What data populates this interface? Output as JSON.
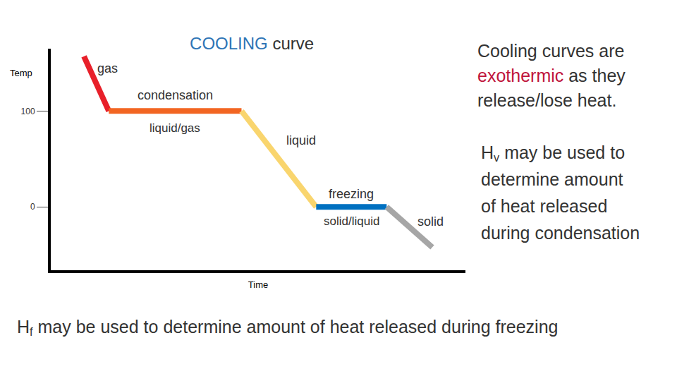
{
  "chart_data": {
    "type": "line",
    "title": [
      {
        "text": "COOLING",
        "color": "#2e75b6"
      },
      {
        "text": " curve"
      }
    ],
    "x_label": "Time",
    "y_label": "Temp",
    "xlim": [
      0,
      100
    ],
    "ylim": [
      -66,
      165
    ],
    "xticks": [],
    "yticks": [
      0,
      100
    ],
    "tick_labels": "y",
    "grid": false,
    "series": [
      {
        "name": "gas",
        "color": "#e8202a",
        "x": [
          8,
          14
        ],
        "values": [
          157,
          100
        ]
      },
      {
        "name": "condensation",
        "phase": "liquid/gas",
        "color": "#f26522",
        "x": [
          14,
          46
        ],
        "values": [
          100,
          100
        ]
      },
      {
        "name": "liquid",
        "color": "#f9d56e",
        "x": [
          46,
          64
        ],
        "values": [
          100,
          0
        ]
      },
      {
        "name": "freezing",
        "phase": "solid/liquid",
        "color": "#0070c0",
        "x": [
          64,
          81
        ],
        "values": [
          0,
          0
        ]
      },
      {
        "name": "solid",
        "color": "#a6a6a6",
        "x": [
          81,
          92
        ],
        "values": [
          0,
          -42
        ]
      }
    ],
    "notes": [
      {
        "lines": [
          [
            {
              "text": "Cooling curves are"
            }
          ],
          [
            {
              "text": "exothermic",
              "color": "#c0143c"
            },
            {
              "text": " as they"
            }
          ],
          [
            {
              "text": "release/lose heat."
            }
          ]
        ]
      },
      {
        "lines": [
          [
            {
              "text": "H"
            },
            {
              "text": "v",
              "subscript": true
            },
            {
              "text": " may be used to"
            }
          ],
          [
            {
              "text": "determine amount"
            }
          ],
          [
            {
              "text": "of heat released"
            }
          ],
          [
            {
              "text": "during condensation"
            }
          ]
        ]
      },
      {
        "lines": [
          [
            {
              "text": "H"
            },
            {
              "text": "f",
              "subscript": true
            },
            {
              "text": " may be used to determine amount of heat released during freezing"
            }
          ]
        ]
      }
    ]
  }
}
